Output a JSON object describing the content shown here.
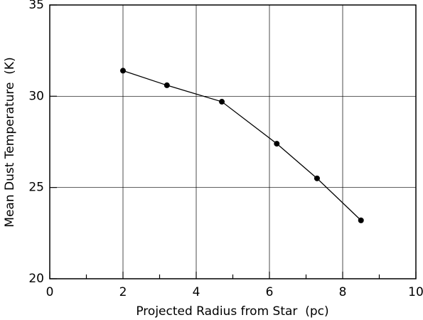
{
  "chart_data": {
    "type": "line",
    "xlabel": "Projected Radius from Star  (pc)",
    "ylabel": "Mean Dust Temperature  (K)",
    "x": [
      2,
      3.2,
      4.7,
      6.2,
      7.3,
      8.5
    ],
    "series": [
      {
        "color": "#000000",
        "values": [
          31.4,
          30.6,
          29.7,
          27.4,
          25.5,
          23.2
        ]
      }
    ],
    "xlim": [
      0,
      10
    ],
    "xticks": [
      0,
      2,
      4,
      6,
      8,
      10
    ],
    "xminorticks": [
      1,
      3,
      5,
      7,
      9
    ],
    "ylim": [
      20,
      35
    ],
    "yticks": [
      20,
      25,
      30,
      35
    ],
    "grid": true
  }
}
